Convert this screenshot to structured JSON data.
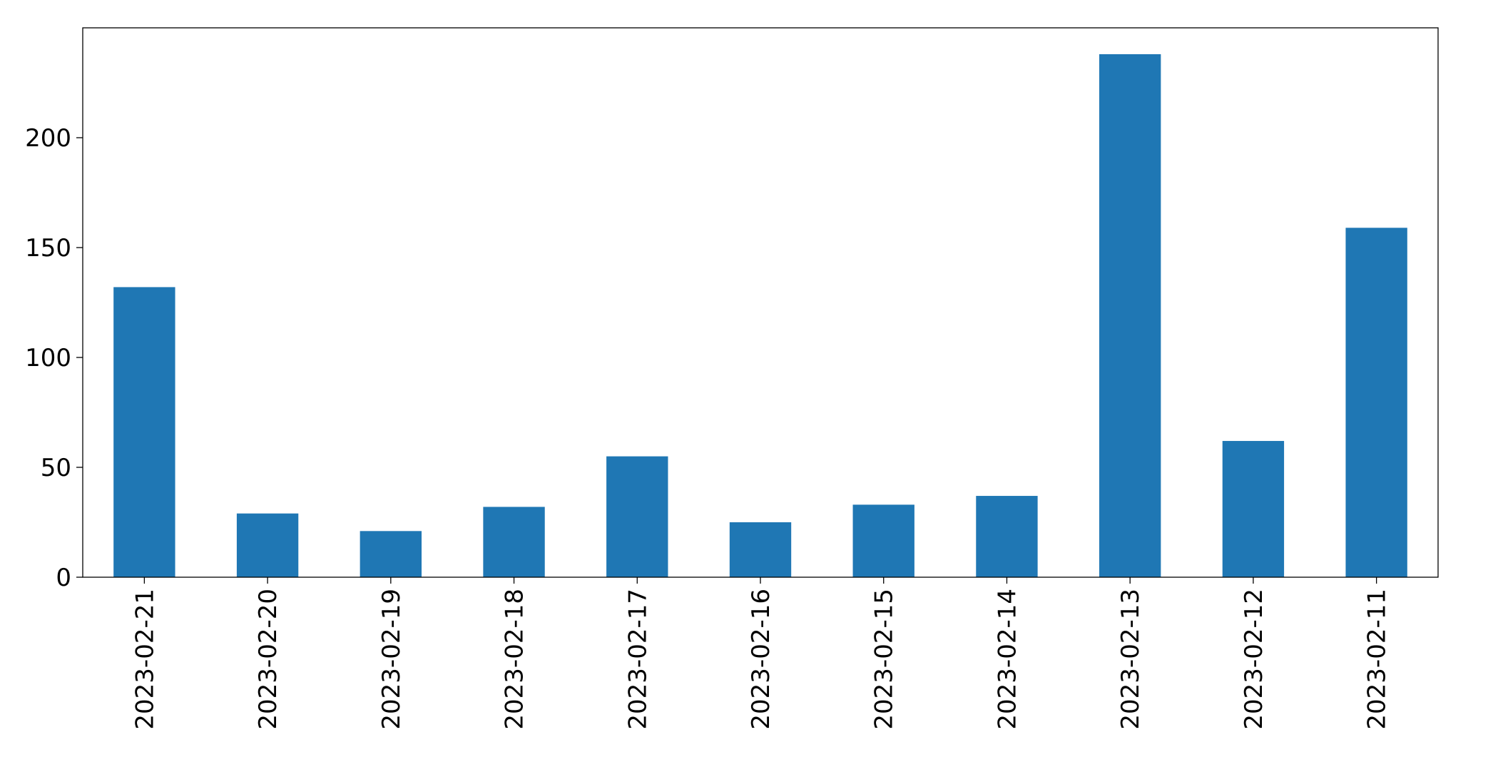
{
  "chart_data": {
    "type": "bar",
    "categories": [
      "2023-02-21",
      "2023-02-20",
      "2023-02-19",
      "2023-02-18",
      "2023-02-17",
      "2023-02-16",
      "2023-02-15",
      "2023-02-14",
      "2023-02-13",
      "2023-02-12",
      "2023-02-11"
    ],
    "values": [
      132,
      29,
      21,
      32,
      55,
      25,
      33,
      37,
      238,
      62,
      159
    ],
    "color": "#1f77b4",
    "ylim": [
      0,
      250
    ],
    "yticks": [
      0,
      50,
      100,
      150,
      200
    ],
    "grid": false
  }
}
